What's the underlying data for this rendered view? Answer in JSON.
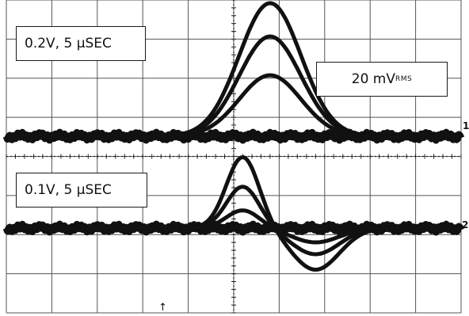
{
  "chart_data": [
    {
      "type": "line",
      "channel_label": "0.2V, 5 µSEC",
      "marker": "1",
      "x": [
        0,
        5,
        10,
        15,
        20,
        25,
        30,
        35,
        40,
        45,
        50
      ],
      "series": [
        {
          "values": [
            0,
            0,
            0,
            0,
            0,
            0.2,
            0.9,
            0.55,
            0.1,
            0,
            0
          ]
        },
        {
          "values": [
            0,
            0,
            0,
            0,
            0,
            0.12,
            0.55,
            0.35,
            0.05,
            0,
            0
          ]
        },
        {
          "values": [
            0,
            0,
            0,
            0,
            0,
            0.3,
            1.2,
            0.7,
            0.12,
            0,
            0
          ]
        }
      ]
    },
    {
      "type": "line",
      "channel_label": "0.1V, 5 µSEC",
      "marker": "2",
      "x": [
        0,
        5,
        10,
        15,
        20,
        25,
        30,
        35,
        40,
        45,
        50
      ],
      "series": [
        {
          "values": [
            0,
            0,
            0,
            0,
            0,
            0.6,
            -0.3,
            -0.35,
            -0.1,
            0,
            0
          ]
        },
        {
          "values": [
            0,
            0,
            0,
            0,
            0,
            0.35,
            -0.2,
            -0.22,
            -0.06,
            0,
            0
          ]
        },
        {
          "values": [
            0,
            0,
            0,
            0,
            0,
            0.15,
            -0.1,
            -0.12,
            -0.03,
            0,
            0
          ]
        }
      ]
    }
  ],
  "labels": {
    "ch1": "0.2V, 5 µSEC",
    "noise_main": "20 mV",
    "noise_sub": "RMS",
    "ch2": "0.1V, 5 µSEC",
    "marker1": "1",
    "marker2": "2",
    "trigger": "↑"
  },
  "colors": {
    "trace": "#111111",
    "grid": "#555555",
    "background": "#ffffff"
  }
}
